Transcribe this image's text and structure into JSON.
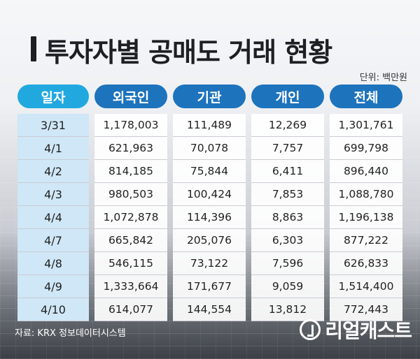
{
  "title": "투자자별 공매도 거래 현황",
  "unit": "단위: 백만원",
  "source": "자료: KRX 정보데이터시스템",
  "logo": "리얼캐스트",
  "colors": {
    "header": "#1d73bc",
    "date_header": "#21a9df",
    "date_col": "#cfe7f7"
  },
  "chart_data": {
    "type": "table",
    "columns": [
      "일자",
      "외국인",
      "기관",
      "개인",
      "전체"
    ],
    "rows": [
      [
        "3/31",
        "1,178,003",
        "111,489",
        "12,269",
        "1,301,761"
      ],
      [
        "4/1",
        "621,963",
        "70,078",
        "7,757",
        "699,798"
      ],
      [
        "4/2",
        "814,185",
        "75,844",
        "6,411",
        "896,440"
      ],
      [
        "4/3",
        "980,503",
        "100,424",
        "7,853",
        "1,088,780"
      ],
      [
        "4/4",
        "1,072,878",
        "114,396",
        "8,863",
        "1,196,138"
      ],
      [
        "4/7",
        "665,842",
        "205,076",
        "6,303",
        "877,222"
      ],
      [
        "4/8",
        "546,115",
        "73,122",
        "7,596",
        "626,833"
      ],
      [
        "4/9",
        "1,333,664",
        "171,677",
        "9,059",
        "1,514,400"
      ],
      [
        "4/10",
        "614,077",
        "144,554",
        "13,812",
        "772,443"
      ]
    ]
  }
}
